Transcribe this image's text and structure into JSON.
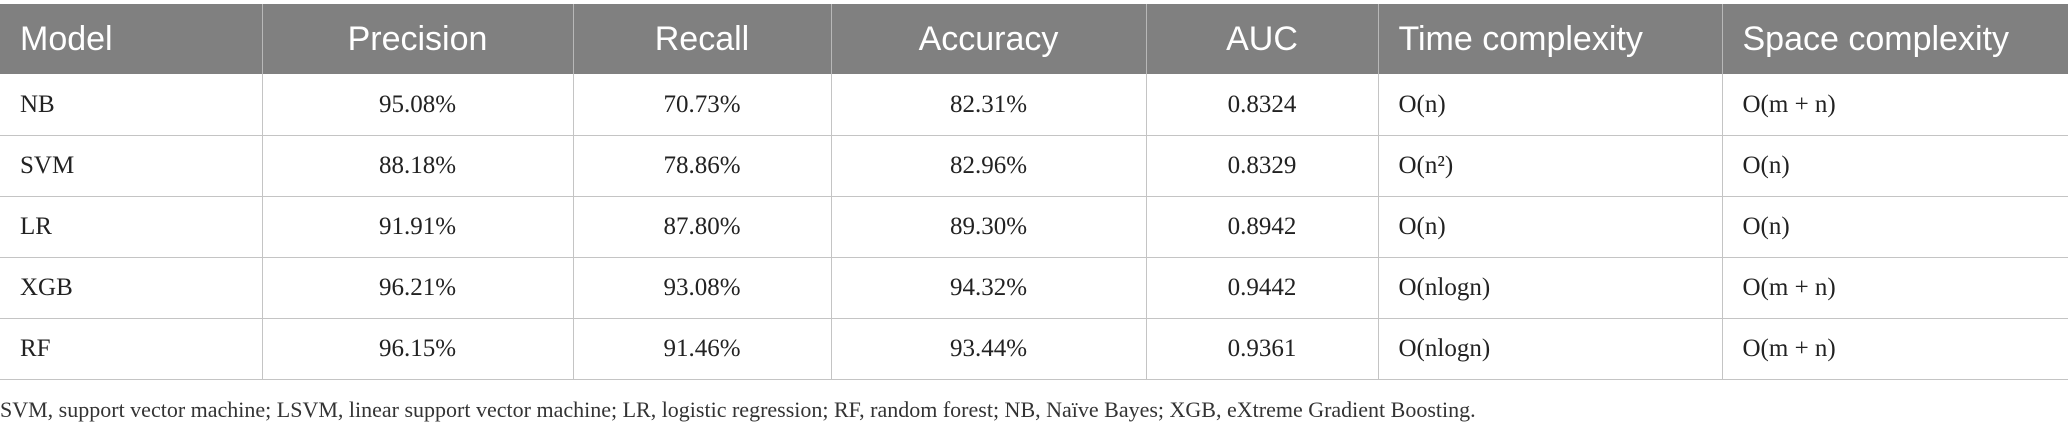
{
  "table": {
    "headers": [
      "Model",
      "Precision",
      "Recall",
      "Accuracy",
      "AUC",
      "Time complexity",
      "Space complexity"
    ],
    "rows": [
      [
        "NB",
        "95.08%",
        "70.73%",
        "82.31%",
        "0.8324",
        "O(n)",
        "O(m + n)"
      ],
      [
        "SVM",
        "88.18%",
        "78.86%",
        "82.96%",
        "0.8329",
        "O(n²)",
        "O(n)"
      ],
      [
        "LR",
        "91.91%",
        "87.80%",
        "89.30%",
        "0.8942",
        "O(n)",
        "O(n)"
      ],
      [
        "XGB",
        "96.21%",
        "93.08%",
        "94.32%",
        "0.9442",
        "O(nlogn)",
        "O(m + n)"
      ],
      [
        "RF",
        "96.15%",
        "91.46%",
        "93.44%",
        "0.9361",
        "O(nlogn)",
        "O(m + n)"
      ]
    ]
  },
  "footnote": "SVM, support vector machine; LSVM, linear support vector machine; LR, logistic regression; RF, random forest; NB, Naïve Bayes; XGB, eXtreme Gradient Boosting.",
  "colors": {
    "header_bg": "#808080",
    "header_text": "#ffffff",
    "grid_line": "#c4c4c4"
  }
}
